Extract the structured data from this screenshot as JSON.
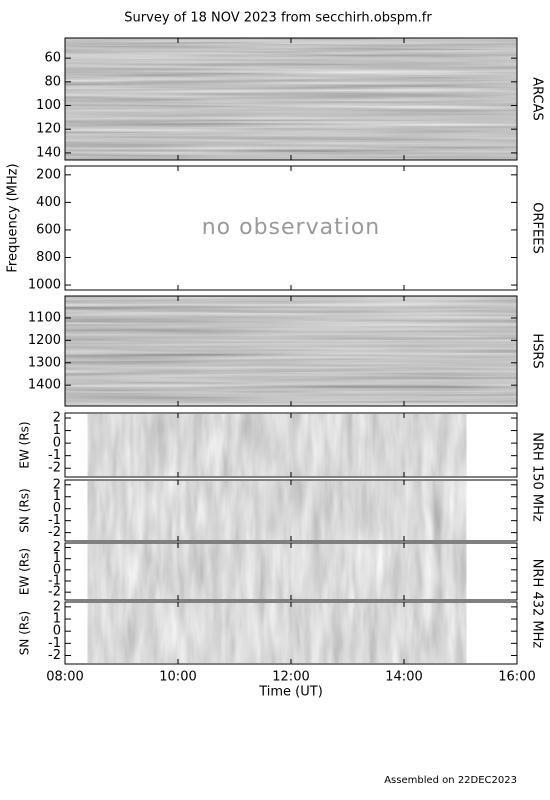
{
  "chart_data": {
    "type": "spectrogram",
    "title": "Survey of 18 NOV 2023 from secchirh.obspm.fr",
    "ylabel": "Frequency (MHz)",
    "xlabel": "Time (UT)",
    "footer": "Assembled on 22DEC2023",
    "xlim": [
      8,
      16
    ],
    "xticks": [
      {
        "value": 8,
        "label": "08:00"
      },
      {
        "value": 10,
        "label": "10:00"
      },
      {
        "value": 12,
        "label": "12:00"
      },
      {
        "value": 14,
        "label": "14:00"
      },
      {
        "value": 16,
        "label": "16:00"
      }
    ],
    "panels": [
      {
        "side_label": "ARCAS",
        "ylim": [
          43,
          146
        ],
        "inverted": true,
        "yticks": [
          60,
          80,
          100,
          120,
          140
        ]
      },
      {
        "side_label": "ORFEES",
        "ylim": [
          136,
          1036
        ],
        "inverted": true,
        "yticks": [
          200,
          400,
          600,
          800,
          1000
        ],
        "annotation": "no observation"
      },
      {
        "side_label": "HSRS",
        "ylim": [
          1002,
          1493
        ],
        "inverted": true,
        "yticks": [
          1100,
          1200,
          1300,
          1400
        ]
      },
      {
        "side_label": "NRH 150 MHz",
        "ylabel": "EW (Rs)",
        "ylim": [
          -2.7,
          2.4
        ],
        "yticks": [
          -2,
          -1,
          0,
          1,
          2
        ],
        "coverage": [
          8.4,
          15.1
        ]
      },
      {
        "ylabel": "SN (Rs)",
        "ylim": [
          -2.7,
          2.4
        ],
        "yticks": [
          -2,
          -1,
          0,
          1,
          2
        ],
        "coverage": [
          8.4,
          15.1
        ]
      },
      {
        "side_label": "NRH 432 MHz",
        "ylabel": "EW (Rs)",
        "ylim": [
          -2.7,
          2.4
        ],
        "yticks": [
          -2,
          -1,
          0,
          1,
          2
        ],
        "coverage": [
          8.4,
          15.1
        ]
      },
      {
        "ylabel": "SN (Rs)",
        "ylim": [
          -2.7,
          2.4
        ],
        "yticks": [
          -2,
          -1,
          0,
          1,
          2
        ],
        "coverage": [
          8.4,
          15.1
        ]
      }
    ]
  }
}
